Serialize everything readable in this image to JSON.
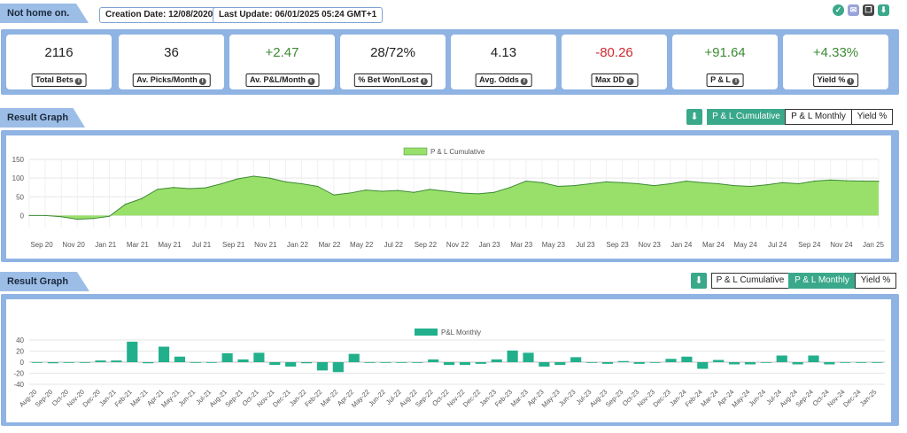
{
  "header": {
    "account_label": "Not home on.",
    "creation_label": "Creation Date:",
    "creation_value": "12/08/2020",
    "update_label": "Last Update:",
    "update_value": "06/01/2025 05:24 GMT+1",
    "icons": [
      "check-icon",
      "mail-icon",
      "copy-icon",
      "download-icon"
    ]
  },
  "stats": [
    {
      "value": "2116",
      "label": "Total Bets",
      "tone": "neutral"
    },
    {
      "value": "36",
      "label": "Av. Picks/Month",
      "tone": "neutral"
    },
    {
      "value": "+2.47",
      "label": "Av. P&L/Month",
      "tone": "pos"
    },
    {
      "value": "28/72%",
      "label": "% Bet Won/Lost",
      "tone": "neutral"
    },
    {
      "value": "4.13",
      "label": "Avg. Odds",
      "tone": "neutral"
    },
    {
      "value": "-80.26",
      "label": "Max DD",
      "tone": "neg"
    },
    {
      "value": "+91.64",
      "label": "P & L",
      "tone": "pos"
    },
    {
      "value": "+4.33%",
      "label": "Yield %",
      "tone": "pos"
    }
  ],
  "graph1": {
    "section_label": "Result Graph",
    "buttons": [
      "P & L Cumulative",
      "P & L Monthly",
      "Yield %"
    ],
    "active": "P & L Cumulative"
  },
  "graph2": {
    "section_label": "Result Graph",
    "buttons": [
      "P & L Cumulative",
      "P & L Monthly",
      "Yield %"
    ],
    "active": "P & L Monthly"
  },
  "colors": {
    "accent": "#3aa88a",
    "panel": "#8fb3e3",
    "area_fill": "#99e06a",
    "area_line": "#3d8a34",
    "bar": "#22b08c",
    "positive": "#3d8a34",
    "negative": "#d0282f"
  },
  "chart_data": [
    {
      "type": "area",
      "legend": "P & L Cumulative",
      "legend_position": "top-center",
      "ylim": [
        -25,
        150
      ],
      "yticks": [
        0,
        50,
        100,
        150
      ],
      "grid": true,
      "x_tick_labels": [
        "Sep 20",
        "Nov 20",
        "Jan 21",
        "Mar 21",
        "May 21",
        "Jul 21",
        "Sep 21",
        "Nov 21",
        "Jan 22",
        "Mar 22",
        "May 22",
        "Jul 22",
        "Sep 22",
        "Nov 22",
        "Jan 23",
        "Mar 23",
        "May 23",
        "Jul 23",
        "Sep 23",
        "Nov 23",
        "Jan 24",
        "Mar 24",
        "May 24",
        "Jul 24",
        "Sep 24",
        "Nov 24",
        "Jan 25"
      ],
      "x": [
        "Aug 20",
        "Sep 20",
        "Oct 20",
        "Nov 20",
        "Dec 20",
        "Jan 21",
        "Feb 21",
        "Mar 21",
        "Apr 21",
        "May 21",
        "Jun 21",
        "Jul 21",
        "Aug 21",
        "Sep 21",
        "Oct 21",
        "Nov 21",
        "Dec 21",
        "Jan 22",
        "Feb 22",
        "Mar 22",
        "Apr 22",
        "May 22",
        "Jun 22",
        "Jul 22",
        "Aug 22",
        "Sep 22",
        "Oct 22",
        "Nov 22",
        "Dec 22",
        "Jan 23",
        "Feb 23",
        "Mar 23",
        "Apr 23",
        "May 23",
        "Jun 23",
        "Jul 23",
        "Aug 23",
        "Sep 23",
        "Oct 23",
        "Nov 23",
        "Dec 23",
        "Jan 24",
        "Feb 24",
        "Mar 24",
        "Apr 24",
        "May 24",
        "Jun 24",
        "Jul 24",
        "Aug 24",
        "Sep 24",
        "Oct 24",
        "Nov 24",
        "Dec 24",
        "Jan 25"
      ],
      "values": [
        0,
        0,
        -3,
        -10,
        -8,
        -2,
        30,
        45,
        70,
        75,
        72,
        74,
        85,
        98,
        105,
        100,
        90,
        85,
        78,
        55,
        60,
        68,
        65,
        67,
        62,
        70,
        65,
        60,
        58,
        62,
        75,
        92,
        88,
        78,
        80,
        85,
        90,
        88,
        85,
        80,
        85,
        92,
        88,
        85,
        80,
        78,
        82,
        88,
        85,
        92,
        95,
        93,
        92,
        91.64
      ]
    },
    {
      "type": "bar",
      "legend": "P&L Monthly",
      "legend_position": "top-center",
      "ylim": [
        -40,
        40
      ],
      "yticks": [
        -40,
        -20,
        0,
        20,
        40
      ],
      "grid": true,
      "categories": [
        "Aug-20",
        "Sep-20",
        "Oct-20",
        "Nov-20",
        "Dec-20",
        "Jan-21",
        "Feb-21",
        "Mar-21",
        "Apr-21",
        "May-21",
        "Jun-21",
        "Jul-21",
        "Aug-21",
        "Sep-21",
        "Oct-21",
        "Nov-21",
        "Dec-21",
        "Jan-22",
        "Feb-22",
        "Mar-22",
        "Apr-22",
        "May-22",
        "Jun-22",
        "Jul-22",
        "Aug-22",
        "Sep-22",
        "Oct-22",
        "Nov-22",
        "Dec-22",
        "Jan-23",
        "Feb-23",
        "Mar-23",
        "Apr-23",
        "May-23",
        "Jun-23",
        "Jul-23",
        "Aug-23",
        "Sep-23",
        "Oct-23",
        "Nov-23",
        "Dec-23",
        "Jan-24",
        "Feb-24",
        "Mar-24",
        "Apr-24",
        "May-24",
        "Jun-24",
        "Jul-24",
        "Aug-24",
        "Sep-24",
        "Oct-24",
        "Nov-24",
        "Dec-24",
        "Jan-25"
      ],
      "values": [
        0,
        -2,
        -1,
        0,
        3,
        3,
        37,
        -2,
        28,
        10,
        -1,
        -1,
        16,
        5,
        17,
        -5,
        -8,
        -2,
        -15,
        -18,
        15,
        0,
        0,
        -1,
        0,
        5,
        -5,
        -5,
        -3,
        5,
        21,
        17,
        -8,
        -5,
        9,
        0,
        -3,
        2,
        -3,
        0,
        6,
        10,
        -12,
        4,
        -4,
        -4,
        -1,
        12,
        -4,
        12,
        -4,
        0,
        0,
        0
      ]
    }
  ]
}
